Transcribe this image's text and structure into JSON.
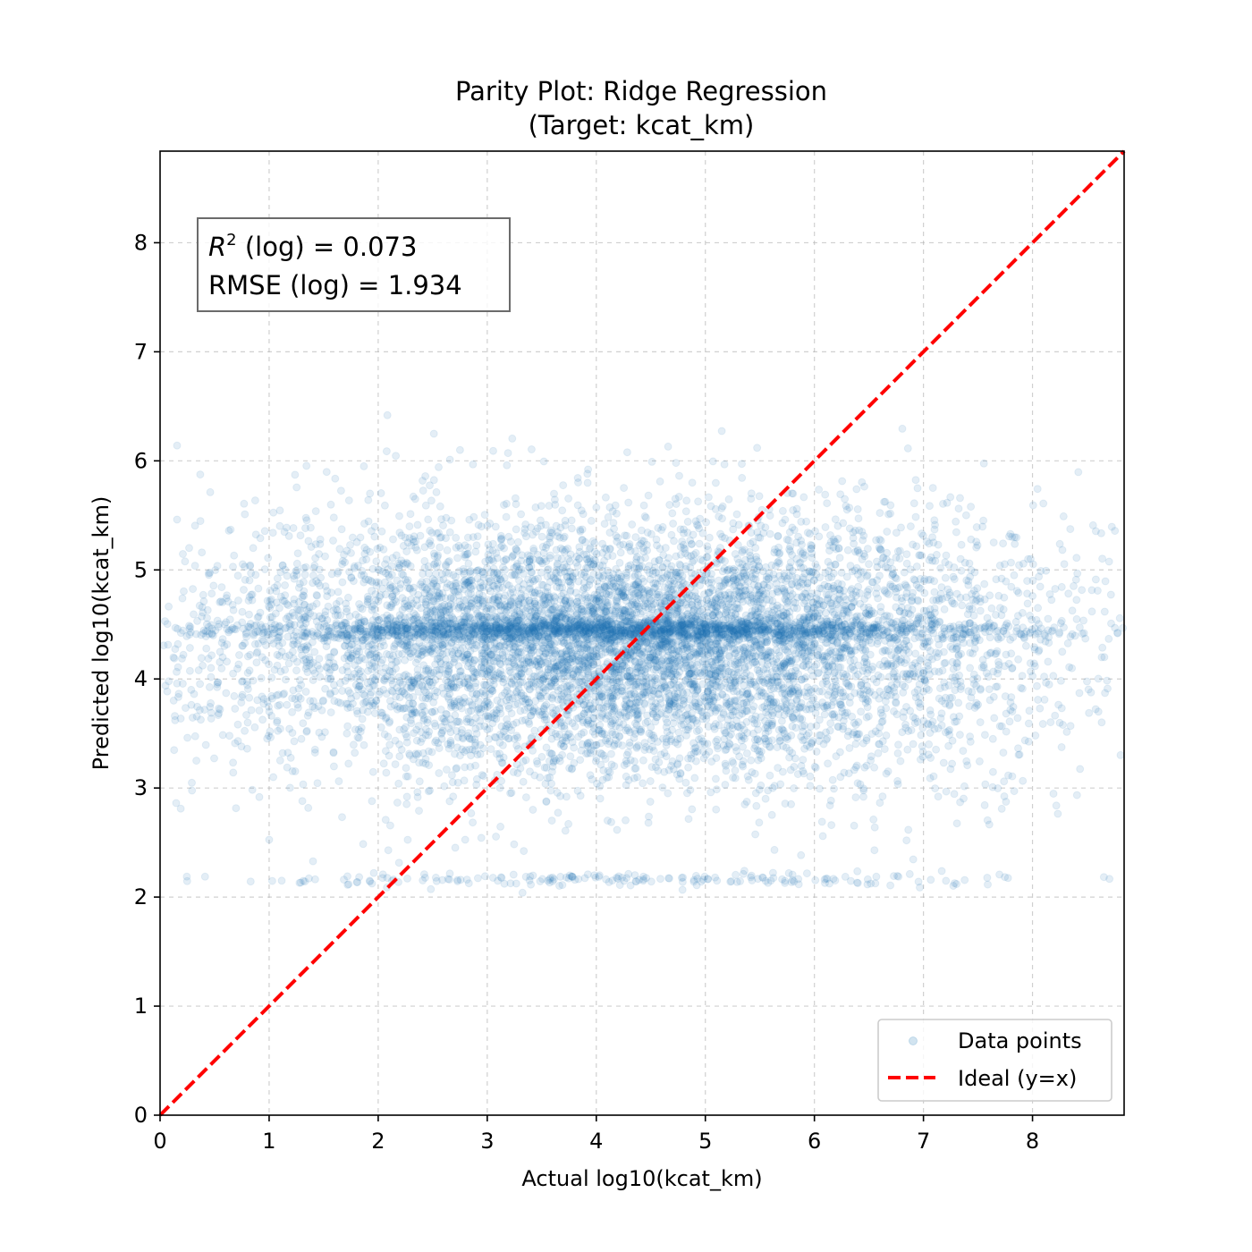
{
  "chart_data": {
    "type": "scatter",
    "title": "Parity Plot: Ridge Regression",
    "subtitle": "(Target: kcat_km)",
    "xlabel": "Actual log10(kcat_km)",
    "ylabel": "Predicted log10(kcat_km)",
    "xlim": [
      0,
      8.84
    ],
    "ylim": [
      0,
      8.84
    ],
    "xticks": [
      "0",
      "1",
      "2",
      "3",
      "4",
      "5",
      "6",
      "7",
      "8"
    ],
    "yticks": [
      "0",
      "1",
      "2",
      "3",
      "4",
      "5",
      "6",
      "7",
      "8"
    ],
    "grid": true,
    "legend_position": "lower-right",
    "stats_box": {
      "r2_symbol": "R",
      "r2_power": "2",
      "r2_rest": " (log) = 0.073",
      "rmse": "RMSE (log) = 1.934",
      "position": "top-left"
    },
    "series": [
      {
        "name": "Data points",
        "kind": "scatter",
        "color": "#1f77b4",
        "alpha": 0.12,
        "description_stats": {
          "x_range": [
            0,
            8.84
          ],
          "y_center": 4.3,
          "y_spread": 0.55,
          "band_y": 4.45,
          "x_center": 4.3,
          "x_spread": 1.9
        }
      },
      {
        "name": "Ideal (y=x)",
        "kind": "line",
        "color": "#ff0000",
        "dash": "dashed",
        "x": [
          0,
          8.84
        ],
        "y": [
          0,
          8.84
        ]
      }
    ]
  }
}
